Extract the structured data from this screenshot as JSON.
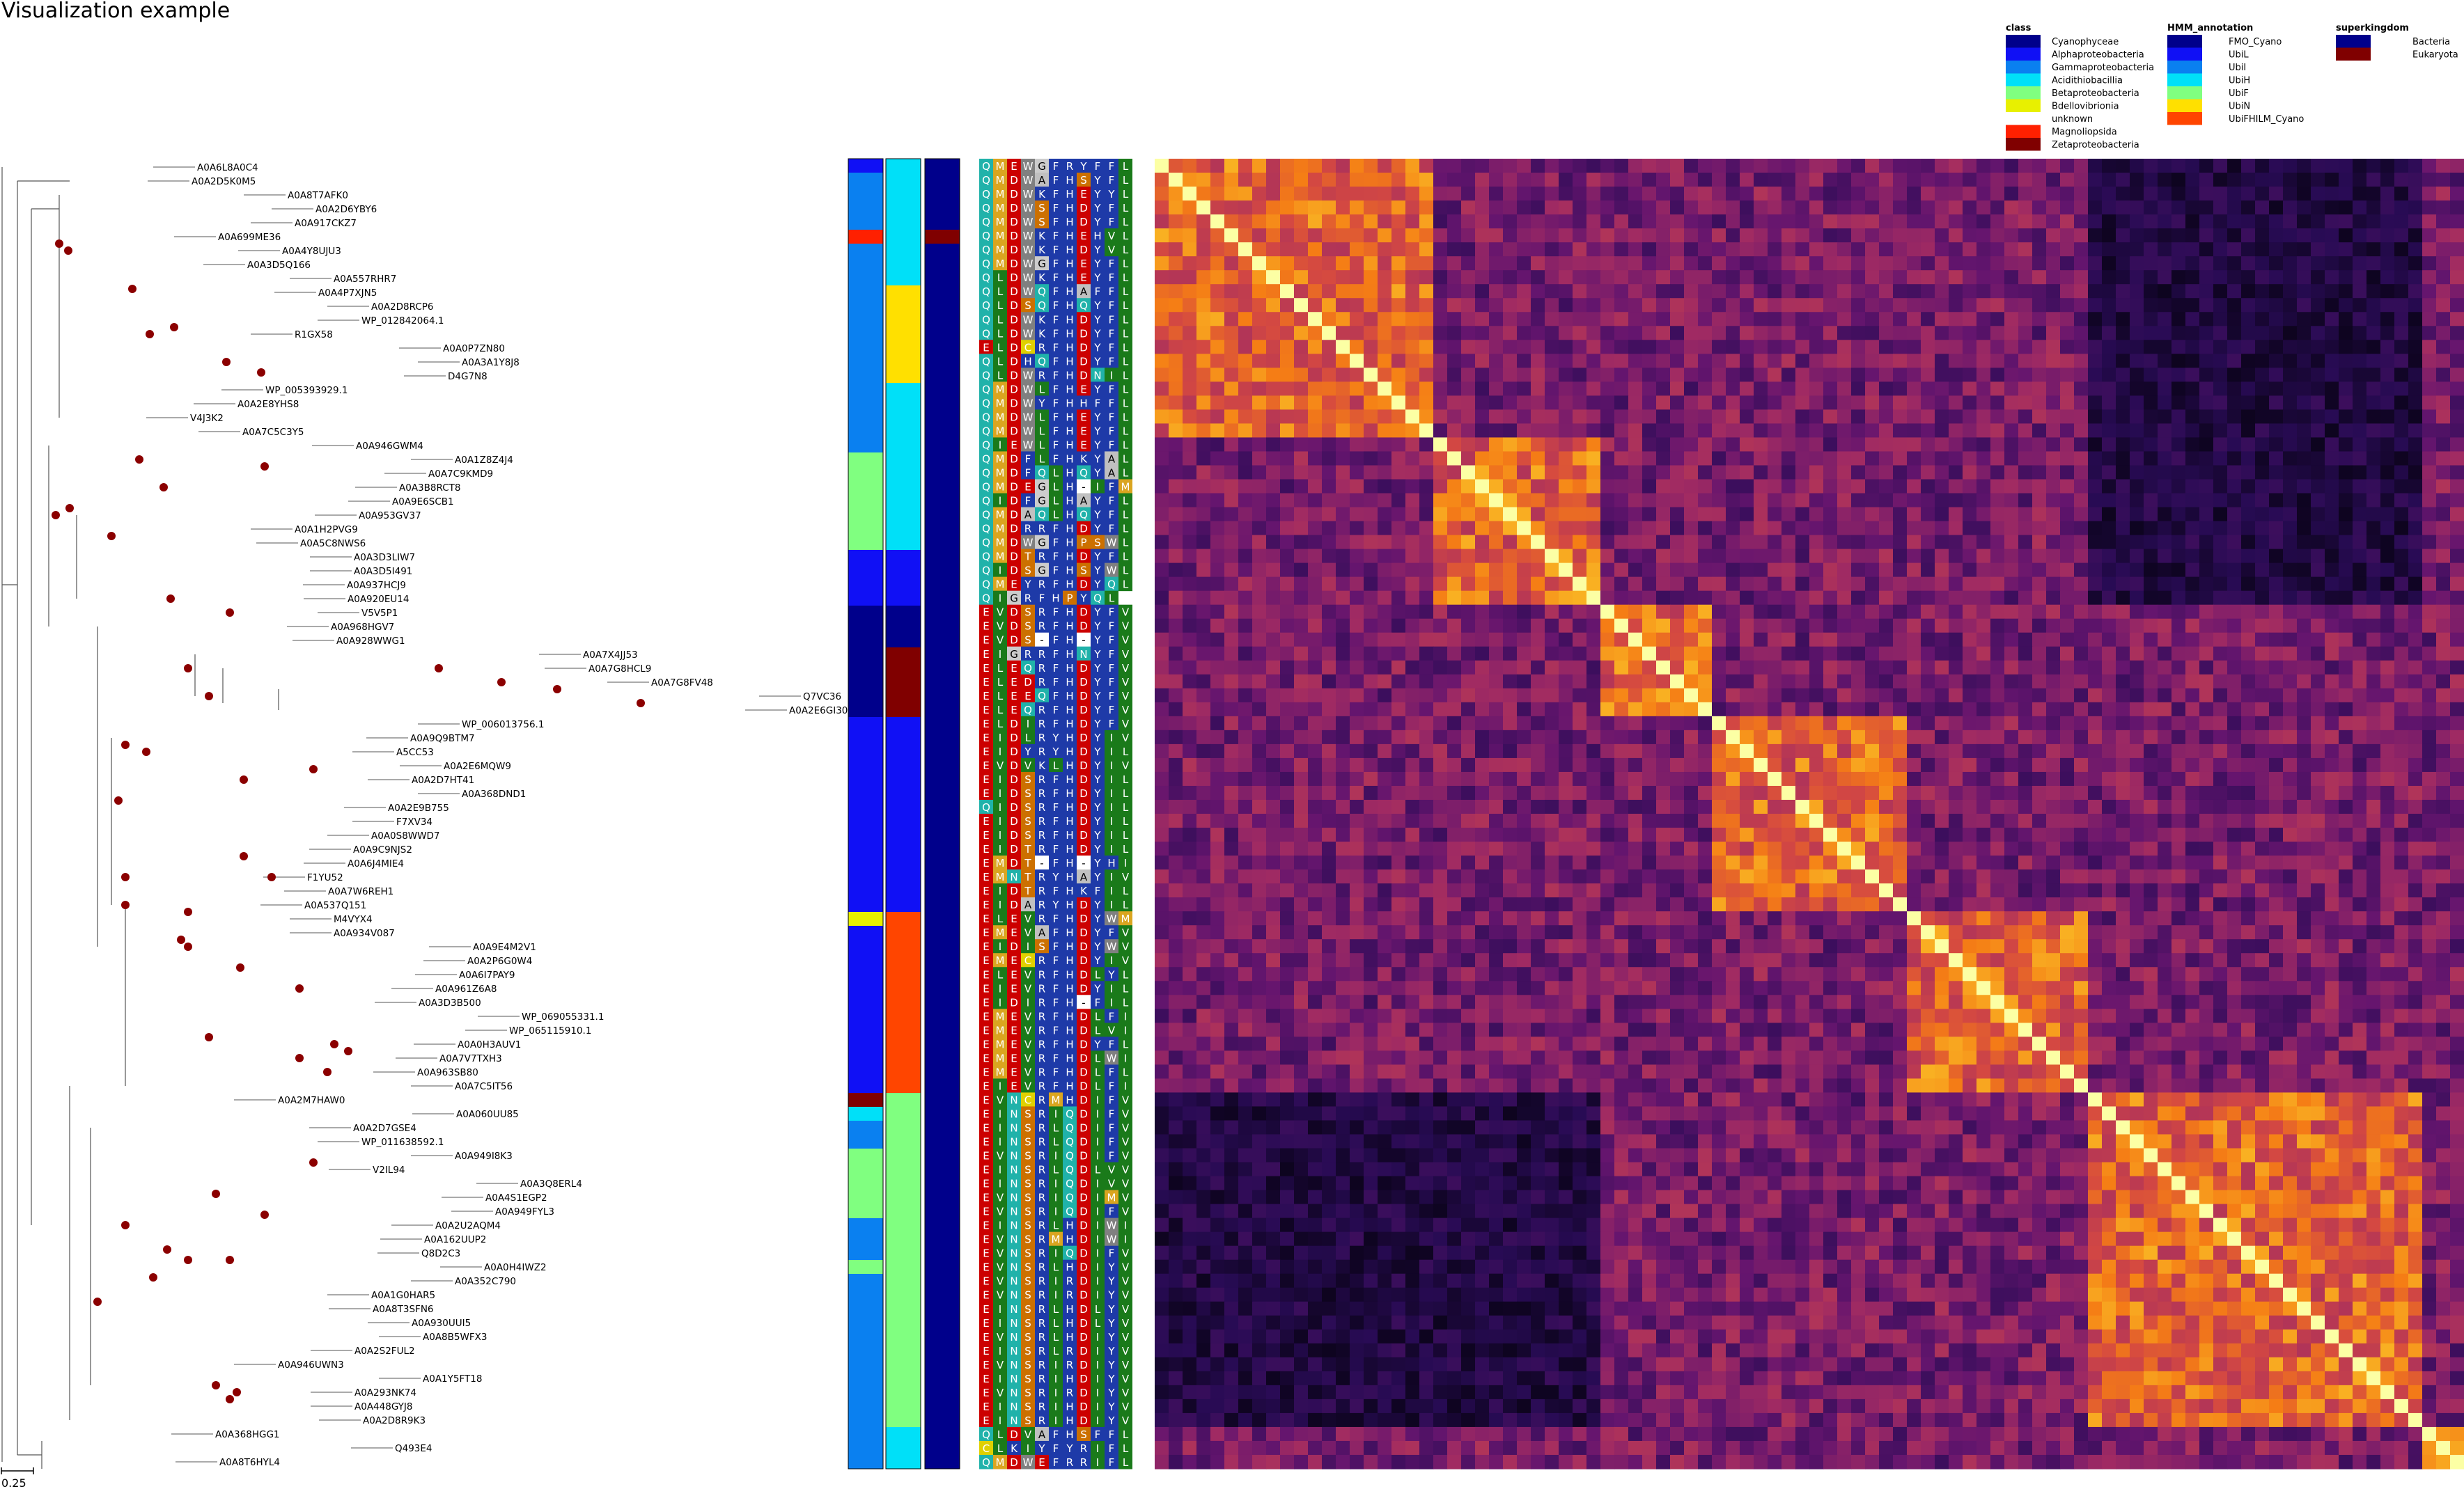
{
  "title": "Visualization example",
  "scale_label": "0.25",
  "legend": {
    "class": {
      "title": "class",
      "entries": [
        {
          "label": "Cyanophyceae",
          "color": "#00008b"
        },
        {
          "label": "Alphaproteobacteria",
          "color": "#1010f5"
        },
        {
          "label": "Gammaproteobacteria",
          "color": "#0a80f0"
        },
        {
          "label": "Acidithiobacillia",
          "color": "#00e0f8"
        },
        {
          "label": "Betaproteobacteria",
          "color": "#80ff80"
        },
        {
          "label": "Bdellovibrionia",
          "color": "#e8f000"
        },
        {
          "label": "unknown",
          "color": "#ffffff"
        },
        {
          "label": "Magnoliopsida",
          "color": "#ff2000"
        },
        {
          "label": "Zetaproteobacteria",
          "color": "#800000"
        }
      ]
    },
    "hmm": {
      "title": "HMM_annotation",
      "entries": [
        {
          "label": "FMO_Cyano",
          "color": "#00008b"
        },
        {
          "label": "UbiL",
          "color": "#1010f5"
        },
        {
          "label": "UbiI",
          "color": "#0a80f0"
        },
        {
          "label": "UbiH",
          "color": "#00e0f8"
        },
        {
          "label": "UbiF",
          "color": "#80ff80"
        },
        {
          "label": "UbiN",
          "color": "#ffe000"
        },
        {
          "label": "UbiFHILM_Cyano",
          "color": "#ff4500"
        }
      ]
    },
    "superkingdom": {
      "title": "superkingdom",
      "entries": [
        {
          "label": "Bacteria",
          "color": "#00008b"
        },
        {
          "label": "Eukaryota",
          "color": "#800000"
        }
      ]
    }
  },
  "leaves": [
    "A0A6L8A0C4",
    "A0A2D5K0M5",
    "A0A8T7AFK0",
    "A0A2D6YBY6",
    "A0A917CKZ7",
    "A0A699ME36",
    "A0A4Y8UJU3",
    "A0A3D5Q166",
    "A0A557RHR7",
    "A0A4P7XJN5",
    "A0A2D8RCP6",
    "WP_012842064.1",
    "R1GX58",
    "A0A0P7ZN80",
    "A0A3A1Y8J8",
    "D4G7N8",
    "WP_005393929.1",
    "A0A2E8YHS8",
    "V4J3K2",
    "A0A7C5C3Y5",
    "A0A946GWM4",
    "A0A1Z8Z4J4",
    "A0A7C9KMD9",
    "A0A3B8RCT8",
    "A0A9E6SCB1",
    "A0A953GV37",
    "A0A1H2PVG9",
    "A0A5C8NWS6",
    "A0A3D3LIW7",
    "A0A3D5I491",
    "A0A937HCJ9",
    "A0A920EU14",
    "V5V5P1",
    "A0A968HGV7",
    "A0A928WWG1",
    "A0A7X4JJ53",
    "A0A7G8HCL9",
    "A0A7G8FV48",
    "Q7VC36",
    "A0A2E6GI30",
    "WP_006013756.1",
    "A0A9Q9BTM7",
    "A5CC53",
    "A0A2E6MQW9",
    "A0A2D7HT41",
    "A0A368DND1",
    "A0A2E9B755",
    "F7XV34",
    "A0A0S8WWD7",
    "A0A9C9NJS2",
    "A0A6J4MIE4",
    "F1YU52",
    "A0A7W6REH1",
    "A0A537Q151",
    "M4VYX4",
    "A0A934V087",
    "A0A9E4M2V1",
    "A0A2P6G0W4",
    "A0A6I7PAY9",
    "A0A961Z6A8",
    "A0A3D3B500",
    "WP_069055331.1",
    "WP_065115910.1",
    "A0A0H3AUV1",
    "A0A7V7TXH3",
    "A0A963SB80",
    "A0A7C5IT56",
    "A0A2M7HAW0",
    "A0A060UU85",
    "A0A2D7GSE4",
    "WP_011638592.1",
    "A0A949I8K3",
    "V2IL94",
    "A0A3Q8ERL4",
    "A0A4S1EGP2",
    "A0A949FYL3",
    "A0A2U2AQM4",
    "A0A162UUP2",
    "Q8D2C3",
    "A0A0H4IWZ2",
    "A0A352C790",
    "A0A1G0HAR5",
    "A0A8T3SFN6",
    "A0A930UUI5",
    "A0A8B5WFX3",
    "A0A2S2FUL2",
    "A0A946UWN3",
    "A0A1Y5FT18",
    "A0A293NK74",
    "A0A448GYJ8",
    "A0A2D8R9K3",
    "A0A368HGG1",
    "Q493E4",
    "A0A8T6HYL4"
  ],
  "msa": [
    "QMEWGFRYFFL",
    "QMDWAFHSYFL",
    "QMDWKFHEYYL",
    "QMDWSFHDYFL",
    "QMDWSFHDYFL",
    "QMDWKFHEHVL",
    "QMDWKFHDYVL",
    "QMDWGFHEYFL",
    "QLDWKFHEYFL",
    "QLDWQFHAFFL",
    "QLDSQFHQYFL",
    "QLDWKFHDYFL",
    "QLDWKFHDYFL",
    "ELDCRFHDYFL",
    "QLDHQFHDYFL",
    "QLDWRFHDNIL",
    "QMDWLFHEYFL",
    "QMDWYFHHFFL",
    "QMDWLFHEYFL",
    "QMDWLFHEYFL",
    "QIEWLFHEYFL",
    "QMDFLFHKYAL",
    "QMDFQLHQYAL",
    "QMDEGLH-IFM",
    "QIDFGLHAYFL",
    "QMDAQLHQYFL",
    "QMDRRFHDYFL",
    "QMDWGFHPSWL",
    "QMDTRFHDYFL",
    "QIDSGFHSYWL",
    "QMEYRFHDYQL",
    "QIGRFHPYQL",
    "EVDSRFHDYFV",
    "EVDSRFHDYFV",
    "EVDS-FH-YFV",
    "EIGRRFHNYFV",
    "ELEQRFHDYFV",
    "ELEDRFHDYFV",
    "ELEEQFHDYFV",
    "ELEQRFHDYFV",
    "ELDIRFHDYFV",
    "EIDLRYHDYIV",
    "EIDYRYHDYIL",
    "EVDVKLHDYIV",
    "EIDSRFHDYIL",
    "EIDSRFHDYIL",
    "QIDSRFHDYIL",
    "EIDSRFHDYIL",
    "EIDSRFHDYIL",
    "EIDTRFHDYIL",
    "EMDT-FH-YHI",
    "EMNTRYHAYIV",
    "EIDTRFHKFIL",
    "EIDARYHDYIL",
    "ELEVRFHDYWM",
    "EMEVAFHDYFV",
    "EIDISFHDYWV",
    "EMECRFHDYIV",
    "ELEVRFHDLYL",
    "EIEVRFHDYIL",
    "EIDIRFH-FIL",
    "EMEVRFHDLFI",
    "EMEVRFHDLVI",
    "EMEVRFHDYFL",
    "EMEVRFHDLWI",
    "EMEVRFHDLFL",
    "EIEVRFHDLFI",
    "EVNCRMHDIFV",
    "EINSRIQDIFV",
    "EINSRLQDIFV",
    "EINSRLQDIFV",
    "EVNSRIQDIFV",
    "EINSRLQDLVV",
    "EINSRIQDIVV",
    "EVNSRIQDIMV",
    "EVNSRIQDIFV",
    "EINSRLHDIWI",
    "EVNSRMHDIWI",
    "EVNSRIQDIFV",
    "EVNSRLHDIYV",
    "EVNSRIRDIYV",
    "EVNSRIRDIYV",
    "EINSRLHDLYV",
    "EINSRLHDLYV",
    "EVNSRLHDIYV",
    "EINSRLRDIYV",
    "EVNSRIRDIYV",
    "EINSRIHDIYV",
    "EVNSRIRDIYV",
    "EINSRIHDIYV",
    "EINSRIHDIYV",
    "QLDVAFHSFFL",
    "CLKIYFYRIFL",
    "QMDWEFRRIFL"
  ],
  "heatmap_note": "pairwise similarity matrix, inferno colormap",
  "colors": {
    "accent": "#8b0000",
    "line": "#000000"
  }
}
